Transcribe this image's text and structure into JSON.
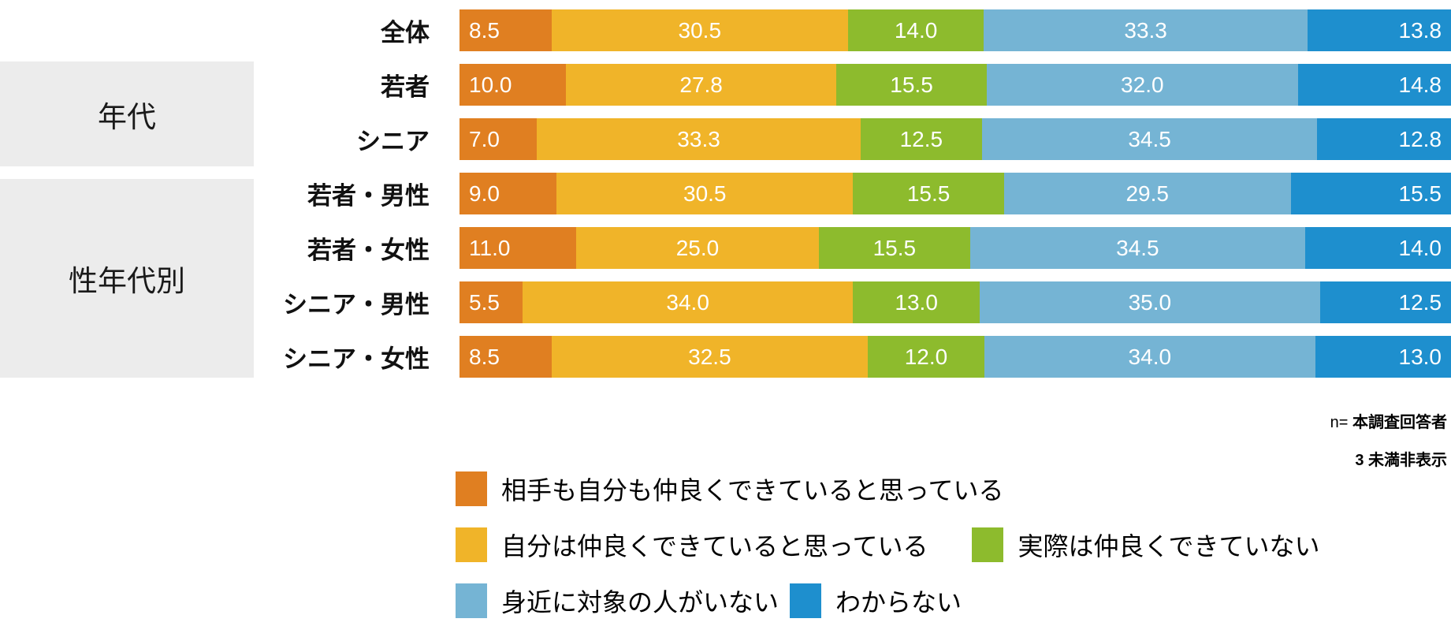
{
  "chart_data": {
    "type": "bar",
    "orientation": "horizontal-stacked",
    "unit": "%",
    "xlim": [
      0,
      100
    ],
    "grid": false,
    "legend_position": "bottom",
    "legend_lines": [
      [
        0
      ],
      [
        1,
        2
      ],
      [
        3,
        4
      ]
    ],
    "value_label_decimals": 1,
    "categories": [
      "全体",
      "若者",
      "シニア",
      "若者・男性",
      "若者・女性",
      "シニア・男性",
      "シニア・女性"
    ],
    "series": [
      {
        "name": "相手も自分も仲良くできていると思っている",
        "color": "#e07f21",
        "values": [
          8.5,
          10.0,
          7.0,
          9.0,
          11.0,
          5.5,
          8.5
        ]
      },
      {
        "name": "自分は仲良くできていると思っている",
        "color": "#f0b429",
        "values": [
          30.5,
          27.8,
          33.3,
          30.5,
          25.0,
          34.0,
          32.5
        ]
      },
      {
        "name": "実際は仲良くできていない",
        "color": "#8dbb2d",
        "values": [
          14.0,
          15.5,
          12.5,
          15.5,
          15.5,
          13.0,
          12.0
        ]
      },
      {
        "name": "身近に対象の人がいない",
        "color": "#75b4d4",
        "values": [
          33.3,
          32.0,
          34.5,
          29.5,
          34.5,
          35.0,
          34.0
        ]
      },
      {
        "name": "わからない",
        "color": "#1e8fce",
        "values": [
          13.8,
          14.8,
          12.8,
          15.5,
          14.0,
          12.5,
          13.0
        ]
      }
    ]
  },
  "groups": [
    {
      "label": "年代"
    },
    {
      "label": "性年代別"
    }
  ],
  "notes": {
    "n_prefix": "n=",
    "n_label": "本調査回答者",
    "hidden_note": "3 未満非表示"
  },
  "colors": {
    "group_box_bg": "#ececec",
    "value_text": "#ffffff"
  }
}
